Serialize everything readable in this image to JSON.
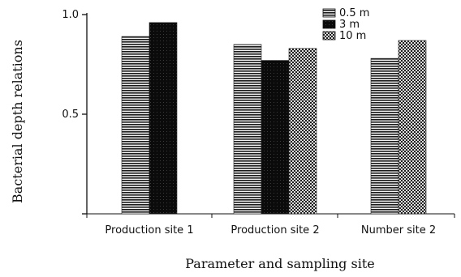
{
  "chart_data": {
    "type": "bar",
    "title": "",
    "xlabel": "Parameter and sampling site",
    "ylabel": "Bacterial depth relations",
    "categories": [
      "Production site 1",
      "Production site 2",
      "Number site 2"
    ],
    "series": [
      {
        "name": "0.5 m",
        "values": [
          0.89,
          0.85,
          0.78
        ],
        "pattern": "horizontal-lines",
        "color": "#1a1a1a"
      },
      {
        "name": "3 m",
        "values": [
          0.96,
          0.77,
          null
        ],
        "pattern": "solid-dark",
        "color": "#0a0a0a"
      },
      {
        "name": "10 m",
        "values": [
          null,
          0.83,
          0.87
        ],
        "pattern": "crosshatch",
        "color": "#2a2a2a"
      }
    ],
    "ylim": [
      0,
      1.0
    ],
    "yticks": [
      {
        "value": 0.5,
        "label": "0.5"
      },
      {
        "value": 1.0,
        "label": "1.0"
      }
    ],
    "grid": false,
    "legend_position": "top-right"
  }
}
